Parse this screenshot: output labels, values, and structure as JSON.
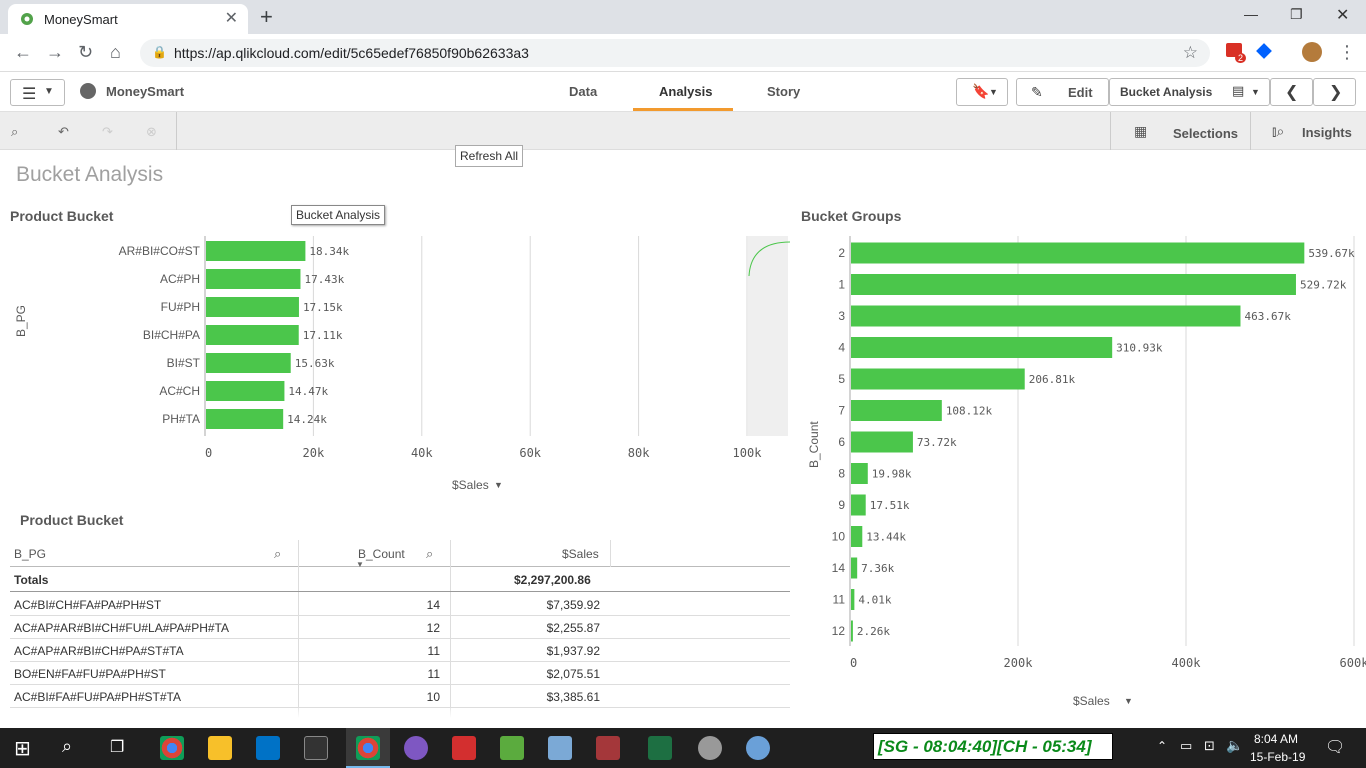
{
  "browser": {
    "tab_title": "MoneySmart",
    "url": "https://ap.qlikcloud.com/edit/5c65edef76850f90b62633a3",
    "gmail_badge": "2"
  },
  "app": {
    "name": "MoneySmart",
    "nav": [
      "Data",
      "Analysis",
      "Story"
    ],
    "active_nav": "Analysis",
    "edit_label": "Edit",
    "sheet_select": "Bucket Analysis",
    "refresh_tooltip": "Refresh All",
    "selections_label": "Selections",
    "insights_label": "Insights"
  },
  "sheet": {
    "title": "Bucket Analysis",
    "hover_tooltip": "Bucket Analysis"
  },
  "chart_data": [
    {
      "type": "bar",
      "orientation": "horizontal",
      "title": "Product Bucket",
      "xlabel": "$Sales",
      "ylabel": "B_PG",
      "categories": [
        "AR#BI#CO#ST",
        "AC#PH",
        "FU#PH",
        "BI#CH#PA",
        "BI#ST",
        "AC#CH",
        "PH#TA"
      ],
      "values": [
        18340,
        17430,
        17150,
        17110,
        15630,
        14470,
        14240
      ],
      "value_labels": [
        "18.34k",
        "17.43k",
        "17.15k",
        "17.11k",
        "15.63k",
        "14.47k",
        "14.24k"
      ],
      "xticks": [
        "0",
        "20k",
        "40k",
        "60k",
        "80k",
        "100k"
      ],
      "xlim": [
        0,
        100000
      ],
      "bar_color": "#4bc64b"
    },
    {
      "type": "bar",
      "orientation": "horizontal",
      "title": "Bucket Groups",
      "xlabel": "$Sales",
      "ylabel": "B_Count",
      "categories": [
        "2",
        "1",
        "3",
        "4",
        "5",
        "7",
        "6",
        "8",
        "9",
        "10",
        "14",
        "11",
        "12"
      ],
      "values": [
        539670,
        529720,
        463670,
        310930,
        206810,
        108120,
        73720,
        19980,
        17510,
        13440,
        7360,
        4010,
        2260
      ],
      "value_labels": [
        "539.67k",
        "529.72k",
        "463.67k",
        "310.93k",
        "206.81k",
        "108.12k",
        "73.72k",
        "19.98k",
        "17.51k",
        "13.44k",
        "7.36k",
        "4.01k",
        "2.26k"
      ],
      "xticks": [
        "0",
        "200k",
        "400k",
        "600k"
      ],
      "xlim": [
        0,
        600000
      ],
      "bar_color": "#4bc64b"
    }
  ],
  "table": {
    "title": "Product Bucket",
    "columns": [
      "B_PG",
      "B_Count",
      "$Sales"
    ],
    "totals_label": "Totals",
    "totals_sales": "$2,297,200.86",
    "rows": [
      {
        "pg": "AC#BI#CH#FA#PA#PH#ST",
        "count": "14",
        "sales": "$7,359.92"
      },
      {
        "pg": "AC#AP#AR#BI#CH#FU#LA#PA#PH#TA",
        "count": "12",
        "sales": "$2,255.87"
      },
      {
        "pg": "AC#AP#AR#BI#CH#PA#ST#TA",
        "count": "11",
        "sales": "$1,937.92"
      },
      {
        "pg": "BO#EN#FA#FU#PA#PH#ST",
        "count": "11",
        "sales": "$2,075.51"
      },
      {
        "pg": "AC#BI#FA#FU#PA#PH#ST#TA",
        "count": "10",
        "sales": "$3,385.61"
      }
    ]
  },
  "taskbar": {
    "banner": "[SG - 08:04:40][CH - 05:34]",
    "time": "8:04 AM",
    "date": "15-Feb-19"
  },
  "colors": {
    "accent": "#f29a2e",
    "bar": "#4bc64b"
  }
}
